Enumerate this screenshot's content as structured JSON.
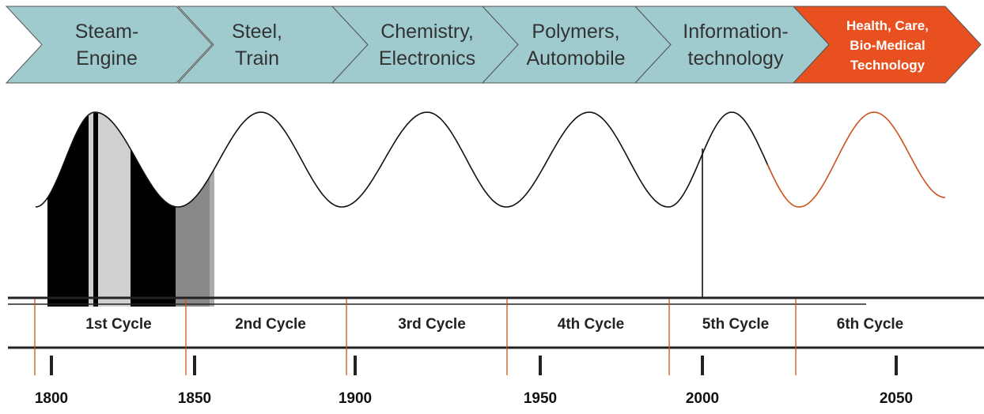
{
  "arrows": [
    {
      "lines": [
        "Steam-",
        "Engine"
      ]
    },
    {
      "lines": [
        "Steel,",
        "Train"
      ]
    },
    {
      "lines": [
        "Chemistry,",
        "Electronics"
      ]
    },
    {
      "lines": [
        "Polymers,",
        "Automobile"
      ]
    },
    {
      "lines": [
        "Information-",
        "technology"
      ]
    },
    {
      "lines": [
        "Health, Care,",
        "Bio-Medical",
        "Technology"
      ]
    }
  ],
  "cycles": [
    "1st Cycle",
    "2nd Cycle",
    "3rd Cycle",
    "4th Cycle",
    "5th Cycle",
    "6th Cycle"
  ],
  "years": [
    "1800",
    "1850",
    "1900",
    "1950",
    "2000",
    "2050"
  ]
}
